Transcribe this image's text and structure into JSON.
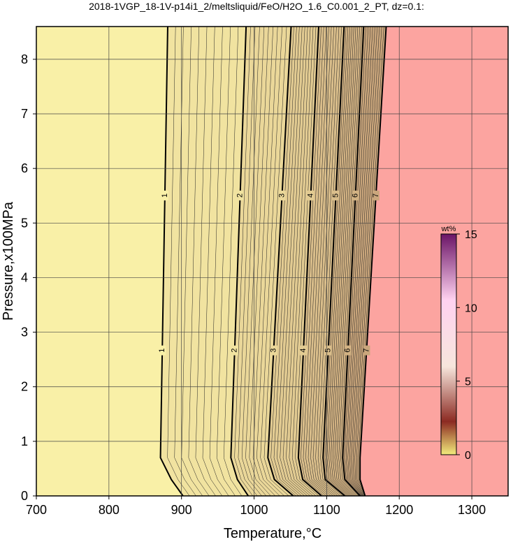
{
  "chart_data": {
    "type": "contour",
    "title": "2018-1VGP_18-1V-p14i1_2/meltsliquid/FeO/H2O_1.6_C0.001_2_PT, dz=0.1:",
    "xlabel": "Temperature,°C",
    "ylabel": "Pressure,x100MPa",
    "xlim": [
      700,
      1350
    ],
    "ylim": [
      0,
      8.6
    ],
    "xticks": [
      700,
      800,
      900,
      1000,
      1100,
      1200,
      1300
    ],
    "yticks": [
      0,
      1,
      2,
      3,
      4,
      5,
      6,
      7,
      8
    ],
    "grid": true,
    "y": [
      0,
      0.3,
      0.7,
      8.6
    ],
    "series": [
      {
        "name": "1",
        "values": [
          902,
          886,
          871,
          881
        ]
      },
      {
        "name": "2",
        "values": [
          992,
          977,
          968,
          989
        ]
      },
      {
        "name": "3",
        "values": [
          1054,
          1028,
          1019,
          1051
        ]
      },
      {
        "name": "4",
        "values": [
          1093,
          1067,
          1061,
          1089
        ]
      },
      {
        "name": "5",
        "values": [
          1125,
          1098,
          1095,
          1124
        ]
      },
      {
        "name": "6",
        "values": [
          1146,
          1125,
          1122,
          1151
        ]
      },
      {
        "name": "7",
        "values": [
          1153,
          1146,
          1146,
          1182
        ]
      }
    ],
    "background_color": "#fdf6ab",
    "region_color": "#fca4a0",
    "colorbar": {
      "label": "wt%",
      "lim": [
        0,
        15
      ],
      "ticks": [
        0,
        5,
        10,
        15
      ]
    }
  }
}
